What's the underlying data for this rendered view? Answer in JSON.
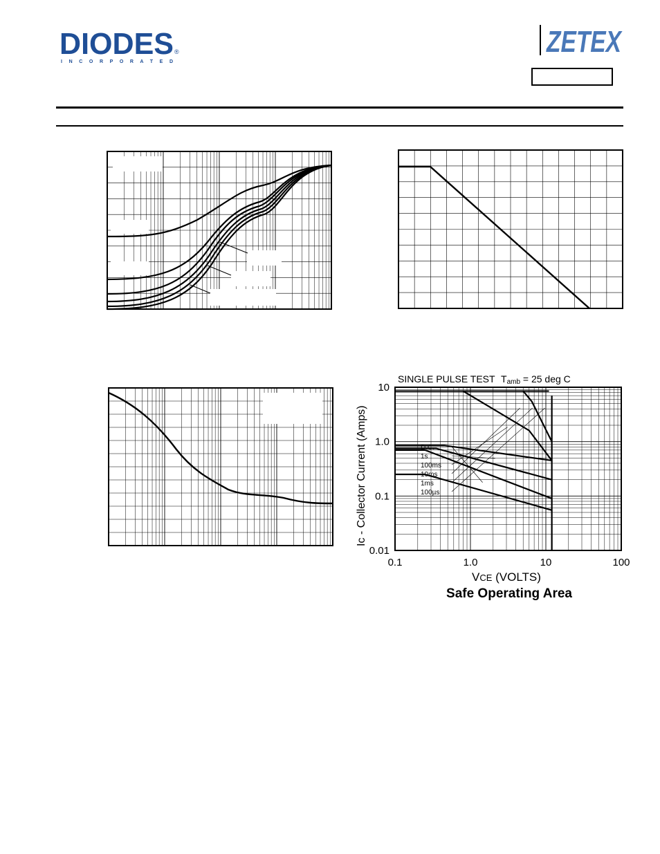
{
  "header": {
    "diodes_logo": {
      "text": "DIODES",
      "subtext": "I N C O R P O R A T E D",
      "registered": "®",
      "color": "#1f4e96"
    },
    "zetex_logo": {
      "text": "ZETEX",
      "color": "#4a78b8"
    },
    "part_number": ""
  },
  "chart_data": [
    {
      "type": "line",
      "title": "",
      "xscale": "log",
      "yscale": "linear",
      "grid": true,
      "series": [],
      "note": ""
    },
    {
      "type": "line",
      "title": "",
      "grid": true,
      "series": []
    },
    {
      "type": "line",
      "title": "",
      "xscale": "log",
      "grid": true,
      "series": []
    },
    {
      "type": "line",
      "title": "Safe Operating Area",
      "subtitle": "SINGLE PULSE TEST",
      "condition": {
        "prefix": "T",
        "sub": "amb",
        "suffix": " = 25 deg C"
      },
      "xlabel": {
        "prefix": "V",
        "sub": "CE",
        "suffix": " (VOLTS)"
      },
      "ylabel": "Ic - Collector Current (Amps)",
      "xscale": "log",
      "yscale": "log",
      "xlim": [
        0.1,
        100
      ],
      "ylim": [
        0.01,
        10
      ],
      "x_ticks": [
        "0.1",
        "1.0",
        "10",
        "100"
      ],
      "y_ticks": [
        "0.01",
        "0.1",
        "1.0",
        "10"
      ],
      "grid": true,
      "legend_placement": "inside-left",
      "series": [
        {
          "name": "D.C.",
          "points": [
            [
              0.1,
              0.25
            ],
            [
              0.25,
              0.25
            ],
            [
              12,
              0.055
            ]
          ]
        },
        {
          "name": "1s",
          "points": [
            [
              0.1,
              0.7
            ],
            [
              0.25,
              0.7
            ],
            [
              12,
              0.09
            ]
          ]
        },
        {
          "name": "100ms",
          "points": [
            [
              0.1,
              0.75
            ],
            [
              0.35,
              0.75
            ],
            [
              12,
              0.2
            ]
          ]
        },
        {
          "name": "10ms",
          "points": [
            [
              0.1,
              0.85
            ],
            [
              0.45,
              0.85
            ],
            [
              12,
              0.45
            ]
          ]
        },
        {
          "name": "1ms",
          "points": [
            [
              0.8,
              8.5
            ],
            [
              6,
              1.6
            ],
            [
              12,
              0.45
            ]
          ]
        },
        {
          "name": "100µs",
          "points": [
            [
              5,
              8.5
            ],
            [
              6.5,
              5.5
            ],
            [
              12,
              1.0
            ]
          ]
        }
      ],
      "limit_lines": [
        {
          "name": "current_limit",
          "points": [
            [
              0.1,
              8.5
            ],
            [
              11,
              8.5
            ]
          ]
        },
        {
          "name": "voltage_limit",
          "points": [
            [
              12,
              0.01
            ],
            [
              12,
              7
            ]
          ]
        }
      ]
    }
  ]
}
